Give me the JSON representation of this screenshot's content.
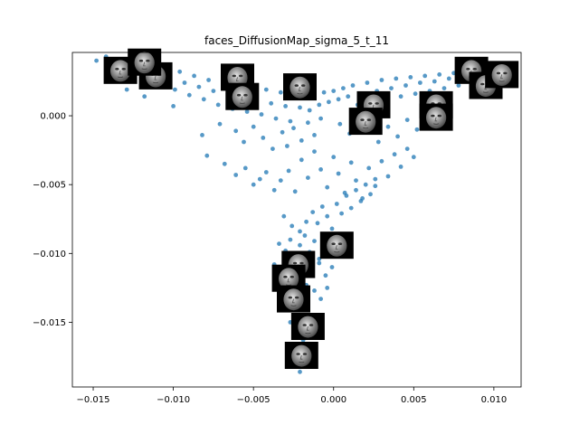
{
  "chart_data": {
    "type": "scatter",
    "title": "faces_DiffusionMap_sigma_5_t_11",
    "xlabel": "",
    "ylabel": "",
    "xlim": [
      -0.0163,
      0.0117
    ],
    "ylim": [
      -0.0197,
      0.0046
    ],
    "xticks": [
      -0.015,
      -0.01,
      -0.005,
      0.0,
      0.005,
      0.01
    ],
    "xtick_labels": [
      "−0.015",
      "−0.010",
      "−0.005",
      "0.000",
      "0.005",
      "0.010"
    ],
    "yticks": [
      -0.015,
      -0.01,
      -0.005,
      0.0
    ],
    "ytick_labels": [
      "−0.015",
      "−0.010",
      "−0.005",
      "0.000"
    ],
    "grid": false,
    "point_color": "#1f77b4",
    "point_alpha": 0.75,
    "points": [
      [
        -0.0148,
        0.004
      ],
      [
        -0.0142,
        0.0043
      ],
      [
        -0.0138,
        0.0038
      ],
      [
        -0.0135,
        0.0031
      ],
      [
        -0.0131,
        0.0035
      ],
      [
        -0.0127,
        0.0028
      ],
      [
        -0.0123,
        0.0041
      ],
      [
        -0.012,
        0.0033
      ],
      [
        -0.0117,
        0.0025
      ],
      [
        -0.0114,
        0.0037
      ],
      [
        -0.0111,
        0.003
      ],
      [
        -0.0108,
        0.0022
      ],
      [
        -0.0105,
        0.0034
      ],
      [
        -0.0102,
        0.0027
      ],
      [
        -0.0099,
        0.0019
      ],
      [
        -0.0096,
        0.0032
      ],
      [
        -0.0093,
        0.0024
      ],
      [
        -0.009,
        0.0015
      ],
      [
        -0.0087,
        0.0029
      ],
      [
        -0.0084,
        0.0021
      ],
      [
        -0.0081,
        0.0012
      ],
      [
        -0.0078,
        0.0026
      ],
      [
        -0.0075,
        0.0018
      ],
      [
        -0.0072,
        0.0008
      ],
      [
        -0.0069,
        0.0024
      ],
      [
        -0.0066,
        0.0016
      ],
      [
        -0.0063,
        0.0005
      ],
      [
        -0.006,
        0.0022
      ],
      [
        -0.0057,
        0.0014
      ],
      [
        -0.0054,
        0.0003
      ],
      [
        -0.0051,
        0.002
      ],
      [
        -0.0048,
        0.0011
      ],
      [
        -0.0045,
        0.0001
      ],
      [
        -0.0042,
        0.0019
      ],
      [
        -0.0039,
        0.0009
      ],
      [
        -0.0036,
        -0.0002
      ],
      [
        -0.0033,
        0.0017
      ],
      [
        -0.003,
        0.0007
      ],
      [
        -0.0027,
        -0.0004
      ],
      [
        -0.0024,
        0.0016
      ],
      [
        -0.0021,
        0.0006
      ],
      [
        -0.0018,
        0.0013
      ],
      [
        -0.0015,
        0.0004
      ],
      [
        -0.0012,
        0.0015
      ],
      [
        -0.0009,
        0.0008
      ],
      [
        -0.0006,
        0.0017
      ],
      [
        -0.0003,
        0.001
      ],
      [
        0.0,
        0.0018
      ],
      [
        0.0003,
        0.0012
      ],
      [
        0.0006,
        0.002
      ],
      [
        0.0009,
        0.0014
      ],
      [
        0.0012,
        0.0022
      ],
      [
        0.0015,
        0.0008
      ],
      [
        0.0018,
        0.0016
      ],
      [
        0.0021,
        0.0024
      ],
      [
        0.0024,
        0.001
      ],
      [
        0.0027,
        0.0018
      ],
      [
        0.003,
        0.0026
      ],
      [
        0.0033,
        0.0012
      ],
      [
        0.0036,
        0.002
      ],
      [
        0.0039,
        0.0027
      ],
      [
        0.0042,
        0.0014
      ],
      [
        0.0045,
        0.0022
      ],
      [
        0.0048,
        0.0028
      ],
      [
        0.0051,
        0.0016
      ],
      [
        0.0054,
        0.0024
      ],
      [
        0.0057,
        0.0029
      ],
      [
        0.006,
        0.0018
      ],
      [
        0.0063,
        0.0025
      ],
      [
        0.0066,
        0.003
      ],
      [
        0.0069,
        0.002
      ],
      [
        0.0072,
        0.0027
      ],
      [
        0.0075,
        0.0031
      ],
      [
        0.0078,
        0.0022
      ],
      [
        0.0081,
        0.0029
      ],
      [
        0.0084,
        0.0033
      ],
      [
        0.0087,
        0.0024
      ],
      [
        0.009,
        0.003
      ],
      [
        0.0093,
        0.0034
      ],
      [
        0.0096,
        0.0026
      ],
      [
        0.0099,
        0.0032
      ],
      [
        0.0102,
        0.0036
      ],
      [
        0.0105,
        0.003
      ],
      [
        0.0108,
        0.0033
      ],
      [
        -0.0129,
        0.0019
      ],
      [
        -0.0118,
        0.0014
      ],
      [
        -0.01,
        0.0007
      ],
      [
        -0.0082,
        -0.0014
      ],
      [
        -0.0071,
        -0.0006
      ],
      [
        -0.0061,
        -0.0011
      ],
      [
        -0.0056,
        -0.0019
      ],
      [
        -0.005,
        -0.0008
      ],
      [
        -0.0044,
        -0.0016
      ],
      [
        -0.0038,
        -0.0024
      ],
      [
        -0.0032,
        -0.0012
      ],
      [
        -0.0029,
        -0.0022
      ],
      [
        -0.0025,
        -0.0009
      ],
      [
        -0.002,
        -0.0018
      ],
      [
        -0.0016,
        -0.0005
      ],
      [
        -0.0012,
        -0.0014
      ],
      [
        -0.0008,
        -0.0002
      ],
      [
        0.0004,
        -0.0006
      ],
      [
        0.001,
        -0.0013
      ],
      [
        0.0016,
        -0.0004
      ],
      [
        0.0022,
        -0.0011
      ],
      [
        0.0028,
        -0.0019
      ],
      [
        0.0034,
        -0.0008
      ],
      [
        0.004,
        -0.0015
      ],
      [
        0.0046,
        -0.0003
      ],
      [
        0.0052,
        -0.001
      ],
      [
        0.0058,
        -0.0002
      ],
      [
        0.0064,
        0.0005
      ],
      [
        0.007,
        0.001
      ],
      [
        -0.0079,
        -0.0029
      ],
      [
        -0.0068,
        -0.0035
      ],
      [
        -0.0061,
        -0.0043
      ],
      [
        -0.0055,
        -0.0038
      ],
      [
        -0.005,
        -0.005
      ],
      [
        -0.0046,
        -0.0046
      ],
      [
        -0.0042,
        -0.0041
      ],
      [
        -0.0037,
        -0.0054
      ],
      [
        -0.0033,
        -0.0047
      ],
      [
        -0.0028,
        -0.004
      ],
      [
        -0.0024,
        -0.0055
      ],
      [
        -0.002,
        -0.0032
      ],
      [
        -0.0016,
        -0.0045
      ],
      [
        -0.0012,
        -0.0026
      ],
      [
        -0.0008,
        -0.0039
      ],
      [
        -0.0004,
        -0.0052
      ],
      [
        0.0,
        -0.003
      ],
      [
        0.0003,
        -0.0042
      ],
      [
        0.0007,
        -0.0056
      ],
      [
        0.0011,
        -0.0034
      ],
      [
        0.0014,
        -0.0047
      ],
      [
        0.0018,
        -0.006
      ],
      [
        0.0022,
        -0.0038
      ],
      [
        0.0026,
        -0.0051
      ],
      [
        0.003,
        -0.0033
      ],
      [
        0.0034,
        -0.0044
      ],
      [
        0.0038,
        -0.0028
      ],
      [
        0.0042,
        -0.0037
      ],
      [
        0.0046,
        -0.0024
      ],
      [
        0.005,
        -0.003
      ],
      [
        -0.0031,
        -0.0073
      ],
      [
        -0.0026,
        -0.008
      ],
      [
        -0.0021,
        -0.0084
      ],
      [
        -0.0017,
        -0.0077
      ],
      [
        -0.0013,
        -0.007
      ],
      [
        -0.001,
        -0.0078
      ],
      [
        -0.0007,
        -0.0066
      ],
      [
        -0.0004,
        -0.0073
      ],
      [
        -0.0001,
        -0.0082
      ],
      [
        0.0002,
        -0.0064
      ],
      [
        0.0005,
        -0.0071
      ],
      [
        0.0008,
        -0.0058
      ],
      [
        0.0011,
        -0.0067
      ],
      [
        0.0014,
        -0.0054
      ],
      [
        0.0017,
        -0.0062
      ],
      [
        0.002,
        -0.005
      ],
      [
        0.0023,
        -0.0057
      ],
      [
        0.0026,
        -0.0046
      ],
      [
        -0.0034,
        -0.0093
      ],
      [
        -0.003,
        -0.0098
      ],
      [
        -0.0027,
        -0.009
      ],
      [
        -0.0024,
        -0.0102
      ],
      [
        -0.0021,
        -0.0094
      ],
      [
        -0.0018,
        -0.0087
      ],
      [
        -0.0015,
        -0.0099
      ],
      [
        -0.0012,
        -0.0091
      ],
      [
        -0.0009,
        -0.0104
      ],
      [
        -0.0006,
        -0.0096
      ],
      [
        -0.0003,
        -0.0089
      ],
      [
        0.0,
        -0.0101
      ],
      [
        -0.0037,
        -0.0108
      ],
      [
        -0.0033,
        -0.0114
      ],
      [
        -0.0029,
        -0.0119
      ],
      [
        -0.0025,
        -0.0111
      ],
      [
        -0.0021,
        -0.0117
      ],
      [
        -0.0017,
        -0.0123
      ],
      [
        -0.0013,
        -0.0113
      ],
      [
        -0.0009,
        -0.0107
      ],
      [
        -0.0005,
        -0.0116
      ],
      [
        -0.0001,
        -0.011
      ],
      [
        -0.0032,
        -0.0128
      ],
      [
        -0.0028,
        -0.0134
      ],
      [
        -0.0024,
        -0.014
      ],
      [
        -0.002,
        -0.0131
      ],
      [
        -0.0016,
        -0.0137
      ],
      [
        -0.0012,
        -0.0127
      ],
      [
        -0.0008,
        -0.0133
      ],
      [
        -0.0004,
        -0.0125
      ],
      [
        -0.0027,
        -0.015
      ],
      [
        -0.0023,
        -0.0157
      ],
      [
        -0.0019,
        -0.0163
      ],
      [
        -0.0016,
        -0.0154
      ],
      [
        -0.0013,
        -0.016
      ],
      [
        -0.001,
        -0.0148
      ],
      [
        -0.0024,
        -0.017
      ],
      [
        -0.002,
        -0.0176
      ],
      [
        -0.0017,
        -0.018
      ],
      [
        -0.0021,
        -0.0186
      ]
    ],
    "image_annotations": [
      {
        "name": "face-thumbnail",
        "x": -0.0133,
        "y": 0.0033
      },
      {
        "name": "face-thumbnail",
        "x": -0.0111,
        "y": 0.0029
      },
      {
        "name": "face-thumbnail",
        "x": -0.0118,
        "y": 0.0039
      },
      {
        "name": "face-thumbnail",
        "x": -0.006,
        "y": 0.0028
      },
      {
        "name": "face-thumbnail",
        "x": -0.0057,
        "y": 0.0014
      },
      {
        "name": "face-thumbnail",
        "x": -0.0021,
        "y": 0.0021
      },
      {
        "name": "face-thumbnail",
        "x": 0.0025,
        "y": 0.0008
      },
      {
        "name": "face-thumbnail",
        "x": 0.002,
        "y": -0.0004
      },
      {
        "name": "face-thumbnail",
        "x": 0.0064,
        "y": 0.0008
      },
      {
        "name": "face-thumbnail",
        "x": 0.0064,
        "y": -0.0001
      },
      {
        "name": "face-thumbnail",
        "x": 0.0086,
        "y": 0.0033
      },
      {
        "name": "face-thumbnail",
        "x": 0.0095,
        "y": 0.0022
      },
      {
        "name": "face-thumbnail",
        "x": 0.0105,
        "y": 0.003
      },
      {
        "name": "face-thumbnail",
        "x": 0.0002,
        "y": -0.0094
      },
      {
        "name": "face-thumbnail",
        "x": -0.0022,
        "y": -0.0108
      },
      {
        "name": "face-thumbnail",
        "x": -0.0028,
        "y": -0.0118
      },
      {
        "name": "face-thumbnail",
        "x": -0.0025,
        "y": -0.0133
      },
      {
        "name": "face-thumbnail",
        "x": -0.0016,
        "y": -0.0153
      },
      {
        "name": "face-thumbnail",
        "x": -0.002,
        "y": -0.0174
      }
    ]
  }
}
